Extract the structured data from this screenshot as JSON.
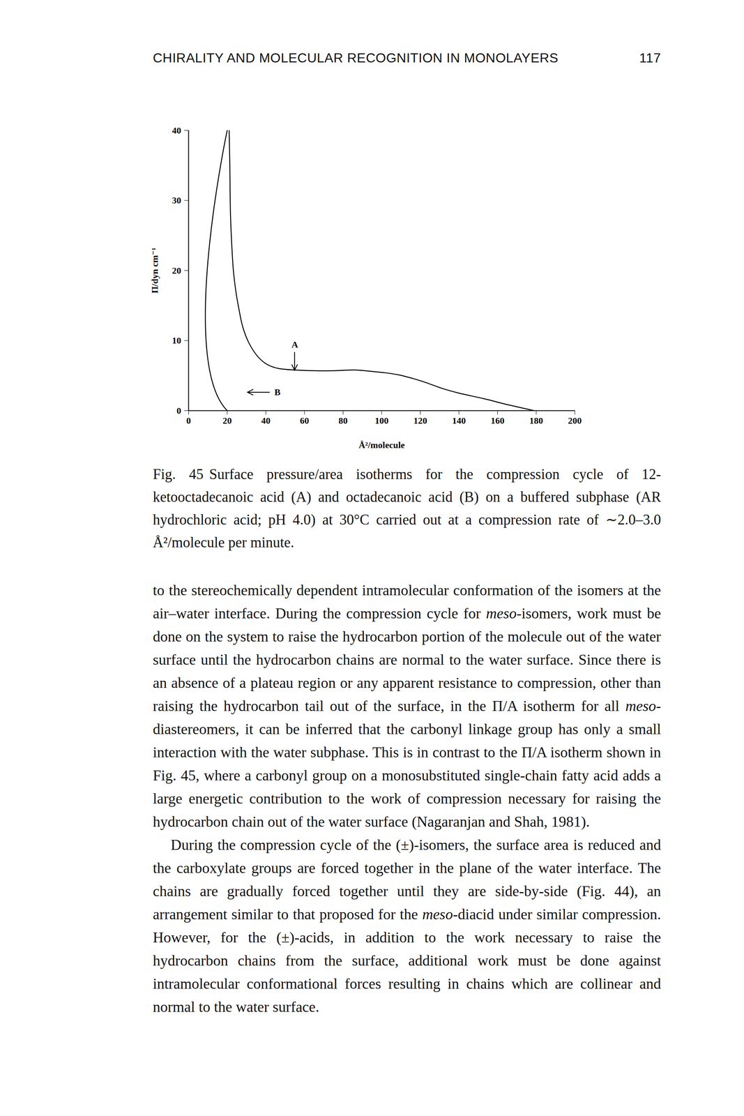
{
  "header": {
    "running_title": "CHIRALITY AND MOLECULAR RECOGNITION IN MONOLAYERS",
    "page": "117"
  },
  "chart_data": {
    "type": "line",
    "x_label": "Å²/molecule",
    "y_label": "Π/dyn cm⁻¹",
    "xlim": [
      0,
      200
    ],
    "ylim": [
      0,
      40
    ],
    "xticks": [
      0,
      20,
      40,
      60,
      80,
      100,
      120,
      140,
      160,
      180,
      200
    ],
    "yticks": [
      0,
      10,
      20,
      30,
      40
    ],
    "grid": false,
    "series": [
      {
        "name": "A",
        "color": "#000000",
        "x": [
          21,
          21.3,
          21.7,
          22.3,
          23.2,
          24.5,
          25.8,
          28,
          31,
          35,
          39,
          43,
          47,
          55,
          65,
          75,
          86,
          95,
          102,
          109,
          116,
          123,
          131,
          140,
          153,
          166,
          179
        ],
        "values": [
          40,
          36,
          28,
          24,
          20,
          17,
          14.9,
          12,
          9.8,
          8,
          6.9,
          6.3,
          6,
          5.8,
          5.7,
          5.7,
          5.8,
          5.6,
          5.4,
          5.1,
          4.6,
          4,
          3.2,
          2.5,
          1.7,
          0.8,
          0
        ]
      },
      {
        "name": "B",
        "color": "#000000",
        "x": [
          200,
          20,
          20
        ],
        "values": [
          0,
          0,
          40
        ]
      }
    ],
    "annotations": [
      {
        "text": "A",
        "x": 55,
        "y": 9.4,
        "arrow": "down"
      },
      {
        "text": "B",
        "x": 46,
        "y": 2.6,
        "arrow": "left"
      }
    ]
  },
  "caption": {
    "label": "Fig. 45",
    "text": "Surface pressure/area isotherms for the compression cycle of 12-ketooctadecanoic acid (A) and octadecanoic acid (B) on a buffered subphase (AR hydrochloric acid; pH 4.0) at 30°C carried out at a compression rate of ∼2.0–3.0 Å²/molecule per minute."
  },
  "body": [
    [
      "to the stereochemically dependent intramolecular conformation of the isomers at the air–water interface. During the compression cycle for ",
      {
        "em": "meso"
      },
      "-isomers, work must be done on the system to raise the hydrocarbon portion of the molecule out of the water surface until the hydrocarbon chains are normal to the water surface. Since there is an absence of a plateau region or any apparent resistance to compression, other than raising the hydrocarbon tail out of the surface, in the Π/A isotherm for all ",
      {
        "em": "meso"
      },
      "-diastereomers, it can be inferred that the carbonyl linkage group has only a small interaction with the water subphase. This is in contrast to the Π/A isotherm shown in Fig. 45, where a carbonyl group on a monosubstituted single-chain fatty acid adds a large energetic contribution to the work of compression necessary for raising the hydrocarbon chain out of the water surface (Nagaranjan and Shah, 1981)."
    ],
    [
      "During the compression cycle of the (±)-isomers, the surface area is reduced and the carboxylate groups are forced together in the plane of the water interface. The chains are gradually forced together until they are side-by-side (Fig. 44), an arrangement similar to that proposed for the ",
      {
        "em": "meso"
      },
      "-diacid under similar compression. However, for the (±)-acids, in addition to the work necessary to raise the hydrocarbon chains from the surface, additional work must be done against intramolecular conformational forces resulting in chains which are collinear and normal to the water surface."
    ]
  ]
}
